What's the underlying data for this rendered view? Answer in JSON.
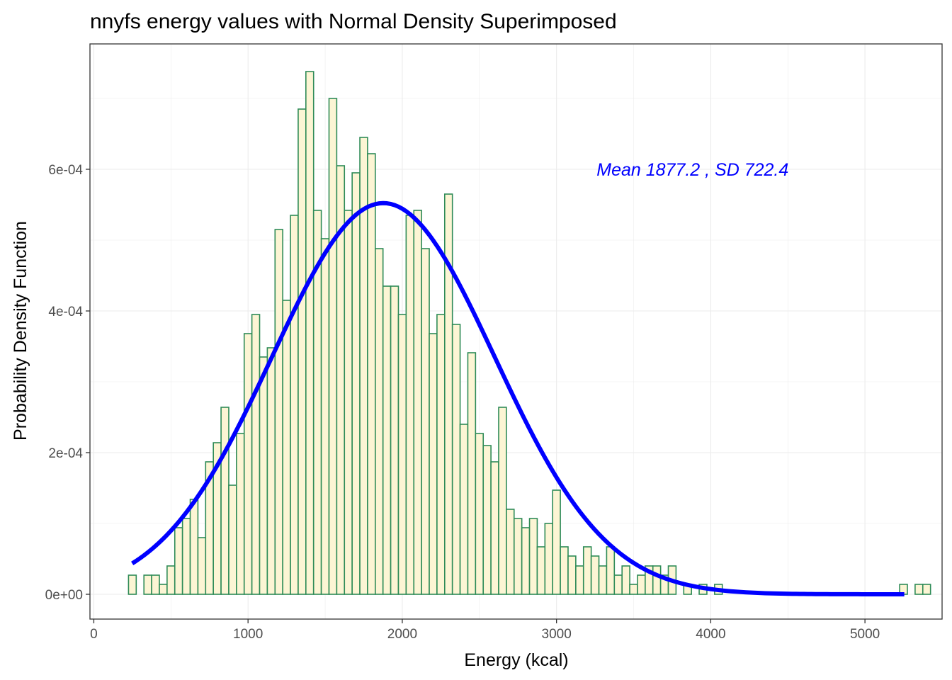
{
  "chart_data": {
    "type": "bar",
    "subtype": "histogram with density curve",
    "title": "nnyfs energy values with Normal Density Superimposed",
    "xlabel": "Energy (kcal)",
    "ylabel": "Probability Density Function",
    "xlim": [
      -25,
      5500
    ],
    "ylim": [
      -3.5e-05,
      0.000777
    ],
    "x_ticks": [
      0,
      1000,
      2000,
      3000,
      4000,
      5000
    ],
    "x_tick_labels": [
      "0",
      "1000",
      "2000",
      "3000",
      "4000",
      "5000"
    ],
    "y_ticks": [
      0,
      0.0002,
      0.0004,
      0.0006
    ],
    "y_tick_labels": [
      "0e+00",
      "2e-04",
      "4e-04",
      "6e-04"
    ],
    "bin_width": 50,
    "bin_start": 225,
    "bin_values": [
      2.7e-05,
      0,
      2.7e-05,
      2.7e-05,
      1.4e-05,
      4e-05,
      9.4e-05,
      0.000107,
      0.000134,
      8e-05,
      0.000187,
      0.000214,
      0.000264,
      0.000154,
      0.000227,
      0.000368,
      0.000395,
      0.000335,
      0.000348,
      0.000515,
      0.000415,
      0.000535,
      0.000685,
      0.000738,
      0.000542,
      0.000502,
      0.0007,
      0.000605,
      0.000542,
      0.000595,
      0.000645,
      0.000622,
      0.000488,
      0.000435,
      0.000435,
      0.000395,
      0.000535,
      0.000542,
      0.000488,
      0.000368,
      0.000395,
      0.000565,
      0.000381,
      0.00024,
      0.000341,
      0.000227,
      0.00021,
      0.000187,
      0.000264,
      0.00012,
      0.000107,
      9.4e-05,
      0.000107,
      6.7e-05,
      0.0001,
      0.000147,
      6.7e-05,
      5.4e-05,
      4e-05,
      6.7e-05,
      5.4e-05,
      4e-05,
      6.7e-05,
      2.7e-05,
      4e-05,
      1.4e-05,
      2.7e-05,
      4e-05,
      4e-05,
      2.7e-05,
      4e-05,
      0,
      1.4e-05,
      0,
      1.4e-05,
      0,
      1.4e-05,
      0,
      0,
      0,
      0,
      0,
      0,
      0,
      0,
      0,
      0,
      0,
      0,
      0,
      0,
      0,
      0,
      0,
      0,
      0,
      0,
      0,
      0,
      0,
      1.4e-05,
      0,
      1.4e-05,
      1.4e-05
    ],
    "density_curve": {
      "distribution": "normal",
      "mean": 1877.2,
      "sd": 722.4,
      "x_range": [
        249,
        5255
      ]
    },
    "annotation": {
      "text": "Mean 1877.2 , SD 722.4",
      "x": 3260,
      "y": 0.0006,
      "color": "#0000ff"
    },
    "colors": {
      "bar_fill": "#fcf5d4",
      "bar_stroke": "#2e8b57",
      "curve": "#0000ff",
      "grid": "#ebebeb"
    },
    "grid": true,
    "legend": "none"
  }
}
